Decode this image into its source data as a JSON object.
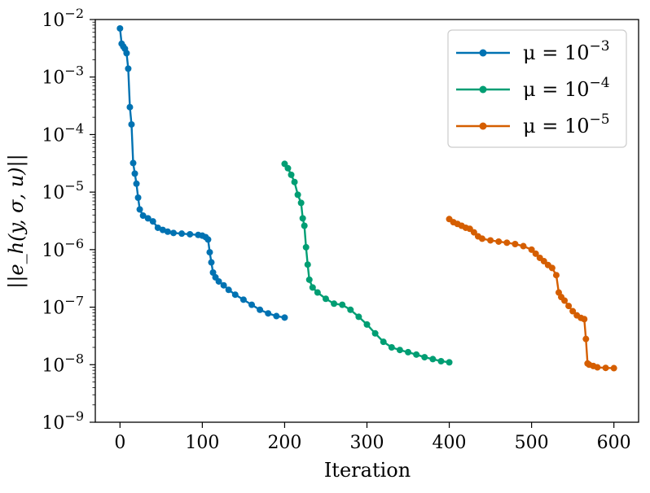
{
  "chart_data": {
    "type": "line",
    "title": "",
    "xlabel": "Iteration",
    "ylabel": "||e_h(y, σ, u)||",
    "yscale": "log",
    "xlim": [
      -30,
      630
    ],
    "ylim": [
      1e-09,
      0.01
    ],
    "x_ticks": [
      0,
      100,
      200,
      300,
      400,
      500,
      600
    ],
    "x_tick_labels": [
      "0",
      "100",
      "200",
      "300",
      "400",
      "500",
      "600"
    ],
    "y_ticks": [
      1e-09,
      1e-08,
      1e-07,
      1e-06,
      1e-05,
      0.0001,
      0.001,
      0.01
    ],
    "y_tick_labels": [
      {
        "base": "10",
        "exp": "−9"
      },
      {
        "base": "10",
        "exp": "−8"
      },
      {
        "base": "10",
        "exp": "−7"
      },
      {
        "base": "10",
        "exp": "−6"
      },
      {
        "base": "10",
        "exp": "−5"
      },
      {
        "base": "10",
        "exp": "−4"
      },
      {
        "base": "10",
        "exp": "−3"
      },
      {
        "base": "10",
        "exp": "−2"
      }
    ],
    "legend_position": "top-right",
    "series": [
      {
        "name": "μ = 10^-3",
        "label_main": "μ = 10",
        "label_exp": "−3",
        "color": "#0072b2",
        "x": [
          0,
          2,
          4,
          6,
          8,
          10,
          12,
          14,
          16,
          18,
          20,
          22,
          24,
          28,
          34,
          40,
          46,
          52,
          58,
          65,
          75,
          85,
          95,
          100,
          104,
          107,
          109,
          111,
          113,
          116,
          120,
          126,
          132,
          140,
          150,
          160,
          170,
          180,
          190,
          200
        ],
        "y": [
          0.007,
          0.0038,
          0.0034,
          0.0031,
          0.0026,
          0.0014,
          0.0003,
          0.00015,
          3.2e-05,
          2.1e-05,
          1.4e-05,
          8e-06,
          5e-06,
          3.9e-06,
          3.5e-06,
          3.1e-06,
          2.4e-06,
          2.2e-06,
          2.05e-06,
          1.95e-06,
          1.9e-06,
          1.85e-06,
          1.8e-06,
          1.75e-06,
          1.65e-06,
          1.5e-06,
          9e-07,
          6e-07,
          4e-07,
          3.3e-07,
          2.8e-07,
          2.4e-07,
          2e-07,
          1.65e-07,
          1.35e-07,
          1.1e-07,
          9e-08,
          7.8e-08,
          7e-08,
          6.6e-08
        ]
      },
      {
        "name": "μ = 10^-4",
        "label_main": "μ = 10",
        "label_exp": "−4",
        "color": "#009e73",
        "x": [
          200,
          204,
          208,
          212,
          216,
          220,
          222,
          224,
          226,
          228,
          230,
          234,
          240,
          250,
          260,
          270,
          280,
          290,
          300,
          310,
          320,
          330,
          340,
          350,
          360,
          370,
          380,
          390,
          400
        ],
        "y": [
          3.1e-05,
          2.6e-05,
          2e-05,
          1.5e-05,
          9e-06,
          6.5e-06,
          3.5e-06,
          2.6e-06,
          1.1e-06,
          5.5e-07,
          3e-07,
          2.2e-07,
          1.8e-07,
          1.4e-07,
          1.15e-07,
          1.1e-07,
          9e-08,
          6.8e-08,
          5e-08,
          3.5e-08,
          2.5e-08,
          2e-08,
          1.8e-08,
          1.65e-08,
          1.5e-08,
          1.35e-08,
          1.25e-08,
          1.15e-08,
          1.1e-08
        ]
      },
      {
        "name": "μ = 10^-5",
        "label_main": "μ = 10",
        "label_exp": "−5",
        "color": "#d55e00",
        "x": [
          400,
          405,
          410,
          415,
          420,
          425,
          430,
          435,
          440,
          450,
          460,
          470,
          480,
          490,
          500,
          505,
          510,
          515,
          520,
          525,
          530,
          533,
          536,
          540,
          545,
          550,
          555,
          560,
          564,
          566,
          568,
          570,
          575,
          580,
          590,
          600
        ],
        "y": [
          3.4e-06,
          3e-06,
          2.8e-06,
          2.6e-06,
          2.4e-06,
          2.3e-06,
          2e-06,
          1.7e-06,
          1.55e-06,
          1.45e-06,
          1.38e-06,
          1.32e-06,
          1.25e-06,
          1.15e-06,
          1e-06,
          8.5e-07,
          7.2e-07,
          6.3e-07,
          5.4e-07,
          4.8e-07,
          3.6e-07,
          1.8e-07,
          1.5e-07,
          1.3e-07,
          1.05e-07,
          8.5e-08,
          7.2e-08,
          6.5e-08,
          6.2e-08,
          2.8e-08,
          1.05e-08,
          1e-08,
          9.5e-09,
          9e-09,
          8.8e-09,
          8.7e-09
        ]
      }
    ]
  }
}
